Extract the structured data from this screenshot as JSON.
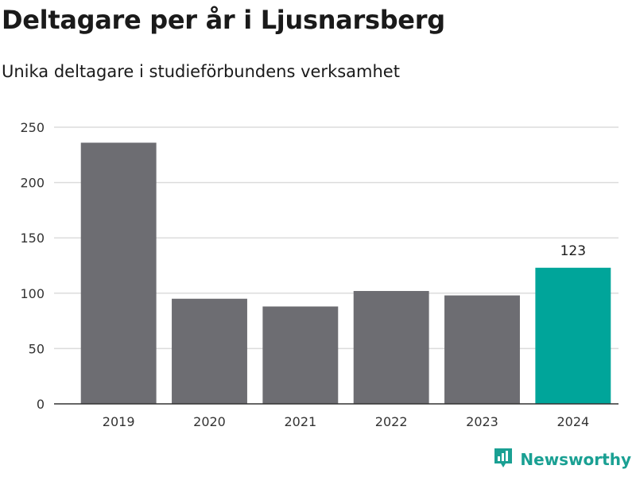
{
  "chart_data": {
    "type": "bar",
    "title": "Deltagare per år i Ljusnarsberg",
    "subtitle": "Unika deltagare i studieförbundens verksamhet",
    "categories": [
      "2019",
      "2020",
      "2021",
      "2022",
      "2023",
      "2024"
    ],
    "values": [
      236,
      95,
      88,
      102,
      98,
      123
    ],
    "data_labels": [
      null,
      null,
      null,
      null,
      null,
      "123"
    ],
    "highlight_index": 5,
    "yticks": [
      "0",
      "50",
      "100",
      "150",
      "200",
      "250"
    ],
    "ylim": [
      0,
      250
    ],
    "xlabel": "",
    "ylabel": "",
    "grid": true,
    "legend": "none",
    "colors": {
      "default": "#6d6d72",
      "highlight": "#00a59a",
      "grid": "#dcdcdc",
      "axis": "#333333"
    }
  },
  "brand": {
    "name": "Newsworthy",
    "icon": "newsworthy-logo-icon",
    "color": "#1aa093"
  }
}
